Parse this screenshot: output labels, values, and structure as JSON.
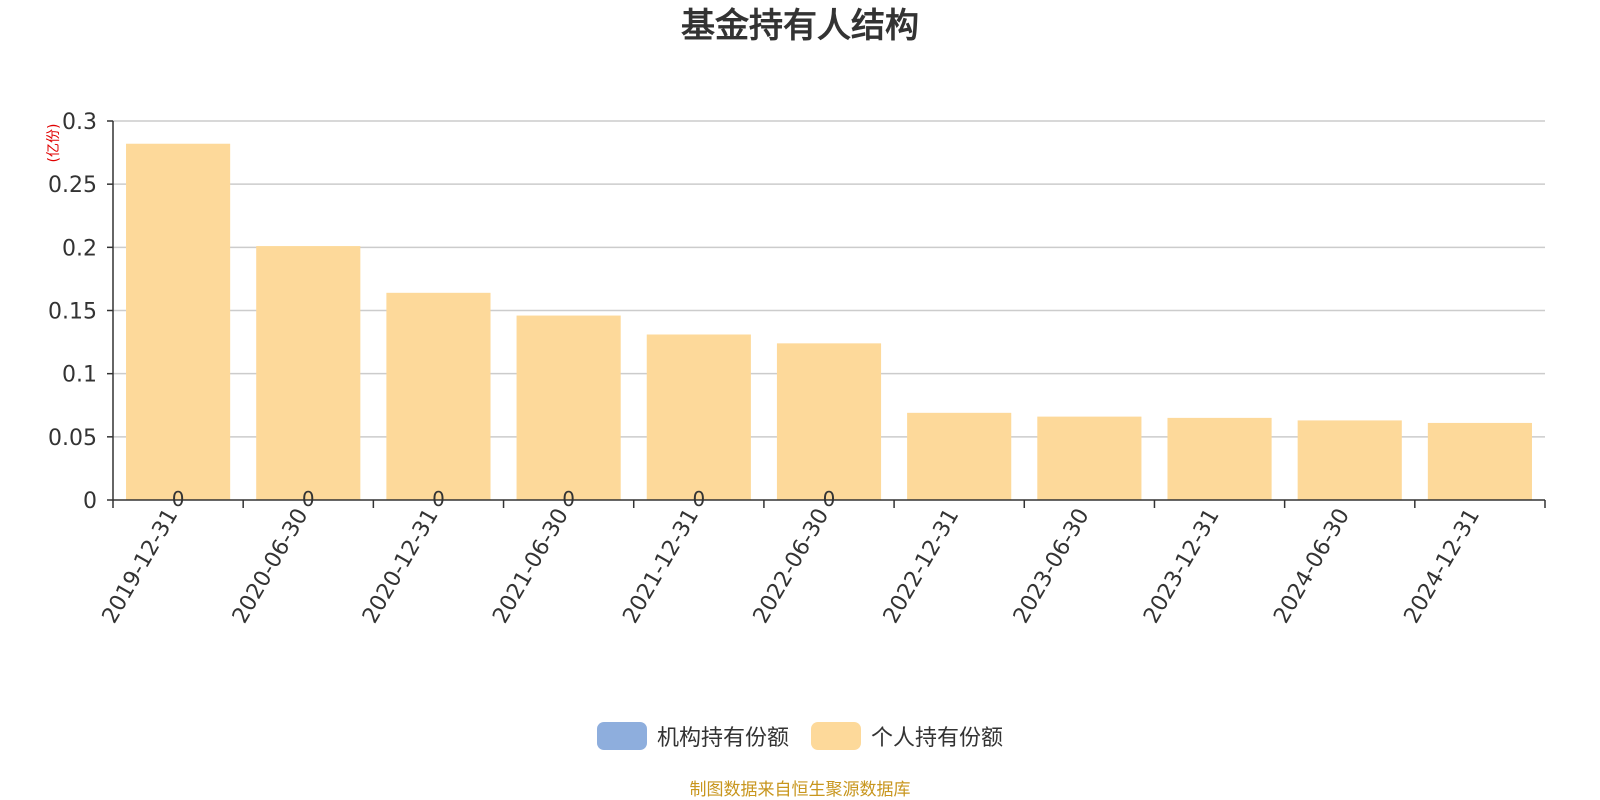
{
  "chart_data": {
    "type": "bar",
    "title": "基金持有人结构",
    "ylabel": "(亿份)",
    "xlabel": "",
    "ylim": [
      0,
      0.3
    ],
    "yticks": [
      "0",
      "0.05",
      "0.1",
      "0.15",
      "0.2",
      "0.25",
      "0.3"
    ],
    "categories": [
      "2019-12-31",
      "2020-06-30",
      "2020-12-31",
      "2021-06-30",
      "2021-12-31",
      "2022-06-30",
      "2022-12-31",
      "2023-06-30",
      "2023-12-31",
      "2024-06-30",
      "2024-12-31"
    ],
    "series": [
      {
        "name": "机构持有份额",
        "color": "#8eaedd",
        "values": [
          0,
          0,
          0,
          0,
          0,
          0,
          0,
          0,
          0,
          0,
          0
        ],
        "labels": [
          "0",
          "0",
          "0",
          "0",
          "0",
          "0",
          "",
          "",
          "",
          "",
          ""
        ]
      },
      {
        "name": "个人持有份额",
        "color": "#fdd99a",
        "values": [
          0.282,
          0.201,
          0.164,
          0.146,
          0.131,
          0.124,
          0.069,
          0.066,
          0.065,
          0.063,
          0.061
        ]
      }
    ],
    "grid": true,
    "legend_position": "bottom",
    "source": "制图数据来自恒生聚源数据库"
  }
}
